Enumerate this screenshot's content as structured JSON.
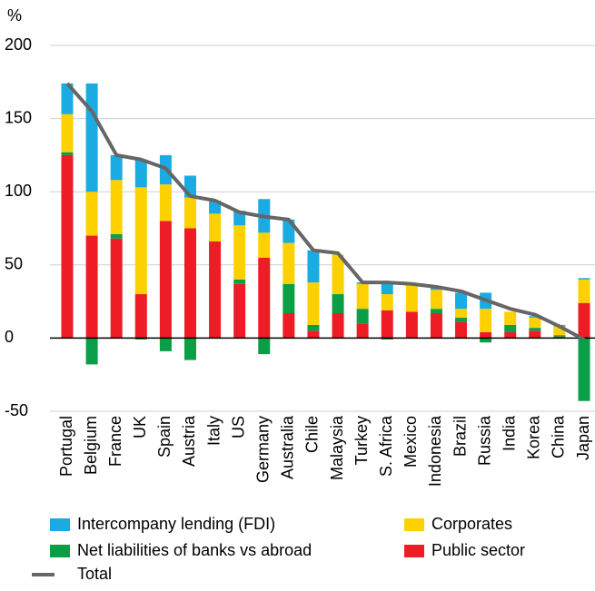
{
  "chart_data": {
    "type": "bar",
    "stacked": true,
    "y_label": "%",
    "categories": [
      "Portugal",
      "Belgium",
      "France",
      "UK",
      "Spain",
      "Austria",
      "Italy",
      "US",
      "Germany",
      "Australia",
      "Chile",
      "Malaysia",
      "Turkey",
      "S. Africa",
      "Mexico",
      "Indonesia",
      "Brazil",
      "Russia",
      "India",
      "Korea",
      "China",
      "Japan"
    ],
    "series": [
      {
        "name": "Public sector",
        "color": "#ee1c25",
        "values": [
          125,
          70,
          68,
          30,
          80,
          75,
          66,
          37,
          55,
          17,
          5,
          17,
          10,
          19,
          18,
          17,
          11,
          4,
          4,
          5,
          1,
          24
        ]
      },
      {
        "name": "Net liabilities of banks vs abroad",
        "color": "#0a9e47",
        "values": [
          2,
          -18,
          3,
          -1,
          -9,
          -15,
          0,
          3,
          -11,
          20,
          4,
          13,
          10,
          -1,
          0,
          3,
          3,
          -3,
          5,
          2,
          1,
          -43
        ]
      },
      {
        "name": "Corporates",
        "color": "#fdd000",
        "values": [
          26,
          30,
          37,
          73,
          25,
          21,
          19,
          37,
          17,
          28,
          29,
          27,
          17,
          11,
          19,
          13,
          6,
          16,
          9,
          7,
          6,
          16
        ]
      },
      {
        "name": "Intercompany lending (FDI)",
        "color": "#1aabe3",
        "values": [
          21,
          74,
          17,
          19,
          20,
          15,
          9,
          10,
          23,
          16,
          22,
          0,
          1,
          8,
          0,
          2,
          11,
          11,
          0,
          1,
          1,
          1
        ]
      }
    ],
    "total": {
      "name": "Total",
      "color": "#666666",
      "values": [
        174,
        155,
        125,
        122,
        116,
        97,
        94,
        86,
        83,
        81,
        60,
        58,
        38,
        38,
        37,
        35,
        32,
        26,
        20,
        16,
        8,
        -1
      ]
    },
    "ylim": [
      -50,
      200
    ],
    "yticks": [
      -50,
      0,
      50,
      100,
      150,
      200
    ],
    "grid": true
  }
}
